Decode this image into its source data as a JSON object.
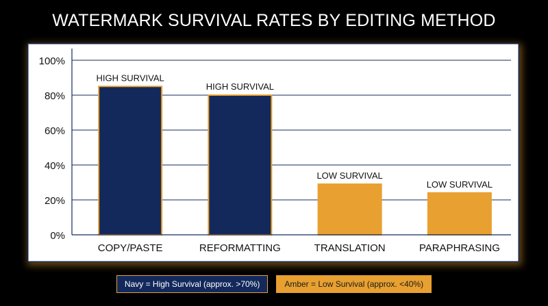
{
  "chart_data": {
    "type": "bar",
    "title": "WATERMARK SURVIVAL RATES BY EDITING METHOD",
    "categories": [
      "COPY/PASTE",
      "REFORMATTING",
      "TRANSLATION",
      "PARAPHRASING"
    ],
    "values": [
      85,
      80,
      29,
      24
    ],
    "bar_labels": [
      "HIGH SURVIVAL",
      "HIGH SURVIVAL",
      "LOW SURVIVAL",
      "LOW SURVIVAL"
    ],
    "bar_colors": [
      "#13295c",
      "#13295c",
      "#e8a030",
      "#e8a030"
    ],
    "bar_border_color": "#e8a030",
    "ylim": [
      0,
      100
    ],
    "yticks": [
      "0%",
      "20%",
      "40%",
      "60%",
      "80%",
      "100%"
    ],
    "grid": true,
    "xlabel": "",
    "ylabel": "",
    "legend_placement": "bottom-center",
    "legend": [
      {
        "label": "Navy = High Survival (approx. >70%)",
        "color": "#13295c"
      },
      {
        "label": "Amber = Low Survival (approx. <40%)",
        "color": "#e8a030"
      }
    ]
  }
}
